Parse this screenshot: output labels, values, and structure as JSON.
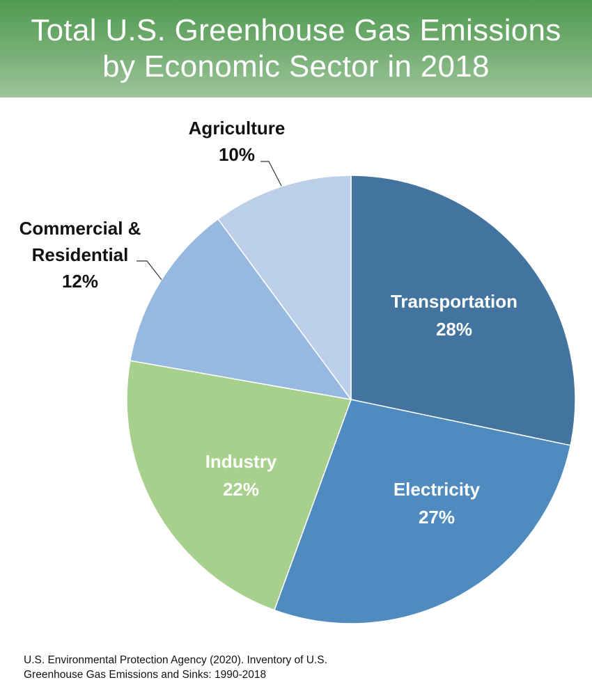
{
  "header": {
    "title_line1": "Total U.S. Greenhouse Gas Emissions",
    "title_line2": "by Economic Sector in 2018"
  },
  "chart_data": {
    "type": "pie",
    "title": "Total U.S. Greenhouse Gas Emissions by Economic Sector in 2018",
    "slices": [
      {
        "label": "Transportation",
        "value": 28,
        "value_label": "28%",
        "color": "#43739f"
      },
      {
        "label": "Electricity",
        "value": 27,
        "value_label": "27%",
        "color": "#4f8bbf"
      },
      {
        "label": "Industry",
        "value": 22,
        "value_label": "22%",
        "color": "#a8d08d"
      },
      {
        "label_lines": [
          "Commercial &",
          "Residential"
        ],
        "label": "Commercial & Residential",
        "value": 12,
        "value_label": "12%",
        "color": "#97b8df"
      },
      {
        "label": "Agriculture",
        "value": 10,
        "value_label": "10%",
        "color": "#bccfe9"
      }
    ]
  },
  "source": {
    "line1": "U.S. Environmental Protection Agency (2020). Inventory of U.S.",
    "line2": "Greenhouse Gas Emissions and Sinks: 1990-2018"
  }
}
